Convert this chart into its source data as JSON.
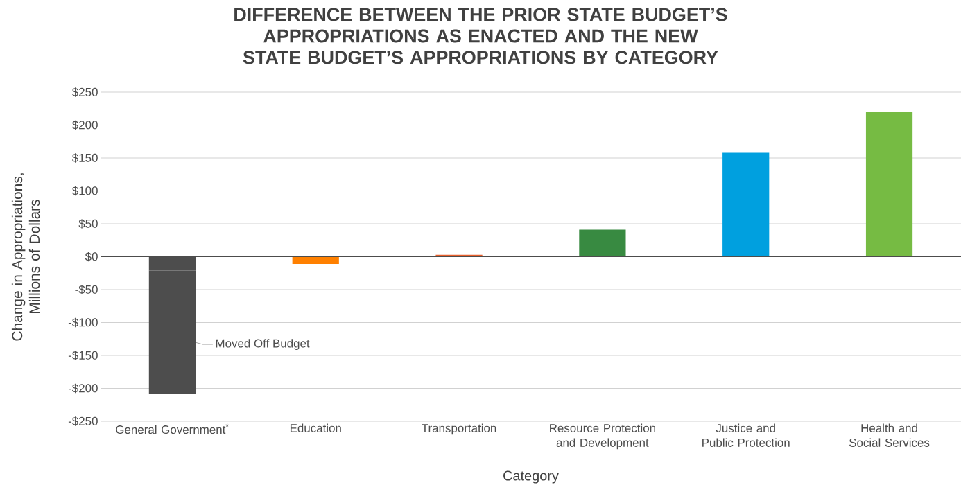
{
  "chart_data": {
    "type": "bar",
    "title": "DIFFERENCE BETWEEN THE PRIOR STATE BUDGET’S APPROPRIATIONS AS ENACTED AND THE NEW STATE BUDGET’S APPROPRIATIONS BY CATEGORY",
    "xlabel": "Category",
    "ylabel": "Change in Appropriations, Millions of Dollars",
    "categories": [
      "General Government$^{*}$",
      "Education",
      "Transportation",
      "Resource Protection and Development",
      "Justice and Public Protection",
      "Health and Social Services"
    ],
    "stacked": true,
    "series": [
      {
        "colors": [
          "#4d4d4d",
          "#ff8000",
          "#e8602c",
          "#388a41",
          "#00a0df",
          "#76bb43"
        ],
        "values": [
          -21,
          -11,
          3,
          41,
          158,
          220
        ]
      },
      {
        "name": "Moved Off Budget",
        "color": "#4d4d4d",
        "values": [
          -187,
          null,
          null,
          null,
          null,
          null
        ]
      }
    ],
    "ylim": [
      -250,
      250
    ],
    "yticks": [
      {
        "value": -250,
        "label": "-$250"
      },
      {
        "value": -200,
        "label": "-$200"
      },
      {
        "value": -150,
        "label": "-$150"
      },
      {
        "value": -100,
        "label": "-$100"
      },
      {
        "value": -50,
        "label": "-$50"
      },
      {
        "value": 0,
        "label": "$0"
      },
      {
        "value": 50,
        "label": "$50"
      },
      {
        "value": 100,
        "label": "$100"
      },
      {
        "value": 150,
        "label": "$150"
      },
      {
        "value": 200,
        "label": "$200"
      },
      {
        "value": 250,
        "label": "$250"
      }
    ],
    "grid": "y"
  }
}
